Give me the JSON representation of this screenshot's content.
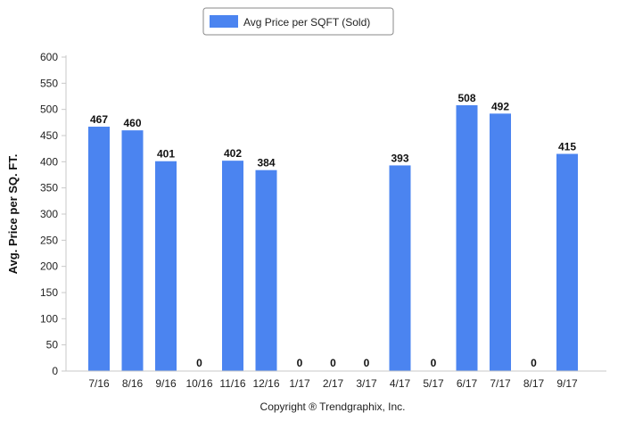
{
  "chart_data": {
    "type": "bar",
    "categories": [
      "7/16",
      "8/16",
      "9/16",
      "10/16",
      "11/16",
      "12/16",
      "1/17",
      "2/17",
      "3/17",
      "4/17",
      "5/17",
      "6/17",
      "7/17",
      "8/17",
      "9/17"
    ],
    "series": [
      {
        "name": "Avg Price per SQFT (Sold)",
        "values": [
          467,
          460,
          401,
          0,
          402,
          384,
          0,
          0,
          0,
          393,
          0,
          508,
          492,
          0,
          415
        ],
        "color": "#4b84f0"
      }
    ],
    "ylabel": "Avg. Price per SQ. FT.",
    "xlabel": "",
    "ylim": [
      0,
      600
    ],
    "yticks": [
      0,
      50,
      100,
      150,
      200,
      250,
      300,
      350,
      400,
      450,
      500,
      550,
      600
    ],
    "grid": false,
    "legend_position": "top-center",
    "data_labels": true
  },
  "footer": {
    "copyright": "Copyright ® Trendgraphix, Inc."
  }
}
